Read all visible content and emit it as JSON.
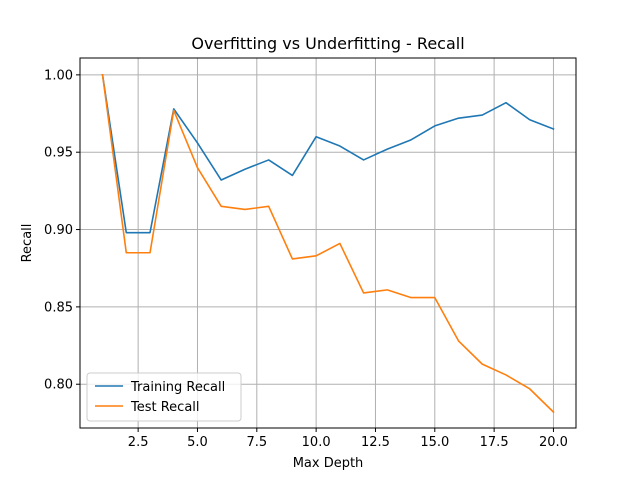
{
  "chart_data": {
    "type": "line",
    "title": "Overfitting vs Underfitting - Recall",
    "xlabel": "Max Depth",
    "ylabel": "Recall",
    "xlim": [
      0.05,
      20.95
    ],
    "ylim": [
      0.7717,
      1.0109
    ],
    "xticks": [
      2.5,
      5.0,
      7.5,
      10.0,
      12.5,
      15.0,
      17.5,
      20.0
    ],
    "xtick_labels": [
      "2.5",
      "5.0",
      "7.5",
      "10.0",
      "12.5",
      "15.0",
      "17.5",
      "20.0"
    ],
    "yticks": [
      0.8,
      0.85,
      0.9,
      0.95,
      1.0
    ],
    "ytick_labels": [
      "0.80",
      "0.85",
      "0.90",
      "0.95",
      "1.00"
    ],
    "grid": true,
    "legend_position": "lower-left",
    "x": [
      1,
      2,
      3,
      4,
      5,
      6,
      7,
      8,
      9,
      10,
      11,
      12,
      13,
      14,
      15,
      16,
      17,
      18,
      19,
      20
    ],
    "series": [
      {
        "name": "Training Recall",
        "color": "#1f77b4",
        "values": [
          1.0,
          0.898,
          0.898,
          0.978,
          0.956,
          0.932,
          0.939,
          0.945,
          0.935,
          0.96,
          0.954,
          0.945,
          0.952,
          0.958,
          0.967,
          0.972,
          0.974,
          0.982,
          0.971,
          0.965
        ]
      },
      {
        "name": "Test Recall",
        "color": "#ff7f0e",
        "values": [
          1.0,
          0.885,
          0.885,
          0.977,
          0.94,
          0.915,
          0.913,
          0.915,
          0.881,
          0.883,
          0.891,
          0.859,
          0.861,
          0.856,
          0.856,
          0.828,
          0.813,
          0.806,
          0.797,
          0.782
        ]
      }
    ]
  }
}
